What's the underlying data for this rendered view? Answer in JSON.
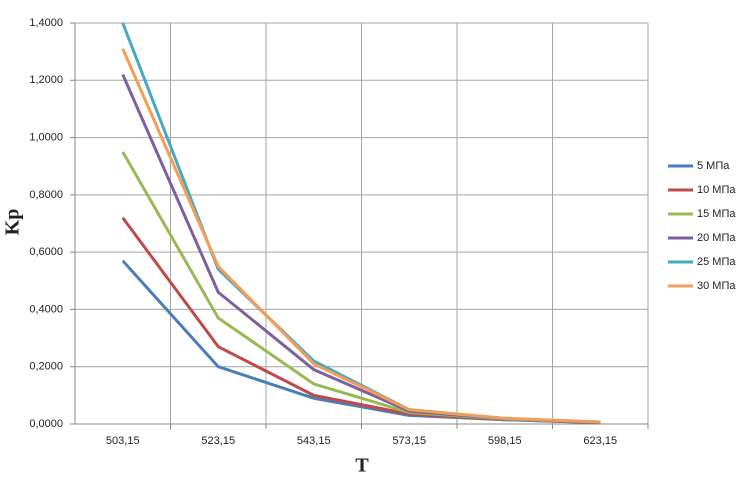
{
  "chart_data": {
    "type": "line",
    "x_label": "T",
    "y_label": "Kp",
    "categories": [
      "503,15",
      "523,15",
      "543,15",
      "573,15",
      "598,15",
      "623,15"
    ],
    "series": [
      {
        "name": "5 МПа",
        "color": "#4a7ebb",
        "values": [
          0.57,
          0.2,
          0.09,
          0.03,
          0.015,
          0.005
        ]
      },
      {
        "name": "10 МПа",
        "color": "#be4b48",
        "values": [
          0.72,
          0.27,
          0.1,
          0.035,
          0.015,
          0.005
        ]
      },
      {
        "name": "15 МПа",
        "color": "#98b954",
        "values": [
          0.95,
          0.37,
          0.14,
          0.04,
          0.017,
          0.006
        ]
      },
      {
        "name": "20 МПа",
        "color": "#7d60a0",
        "values": [
          1.22,
          0.46,
          0.19,
          0.045,
          0.018,
          0.006
        ]
      },
      {
        "name": "25 МПа",
        "color": "#46aac5",
        "values": [
          1.4,
          0.54,
          0.22,
          0.05,
          0.018,
          0.007
        ]
      },
      {
        "name": "30 МПа",
        "color": "#f59d56",
        "values": [
          1.31,
          0.55,
          0.21,
          0.05,
          0.02,
          0.007
        ]
      }
    ],
    "ylim": [
      0,
      1.4
    ],
    "yticks": [
      {
        "value": 0,
        "label": "0,0000"
      },
      {
        "value": 0.2,
        "label": "0,2000"
      },
      {
        "value": 0.4,
        "label": "0,4000"
      },
      {
        "value": 0.6,
        "label": "0,6000"
      },
      {
        "value": 0.8,
        "label": "0,8000"
      },
      {
        "value": 1.0,
        "label": "1,0000"
      },
      {
        "value": 1.2,
        "label": "1,2000"
      },
      {
        "value": 1.4,
        "label": "1,4000"
      }
    ],
    "grid": true,
    "legend": "right"
  }
}
